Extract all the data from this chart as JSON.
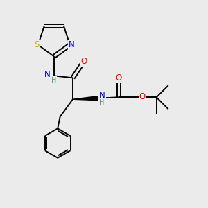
{
  "bg_color": "#ebebeb",
  "atom_colors": {
    "C": "#000000",
    "N": "#0000cc",
    "O": "#ff0000",
    "S": "#ccaa00",
    "H_color": "#5a9090",
    "bond": "#000000"
  },
  "figsize": [
    3.0,
    3.0
  ],
  "dpi": 100,
  "xlim": [
    0,
    10
  ],
  "ylim": [
    0,
    10
  ]
}
